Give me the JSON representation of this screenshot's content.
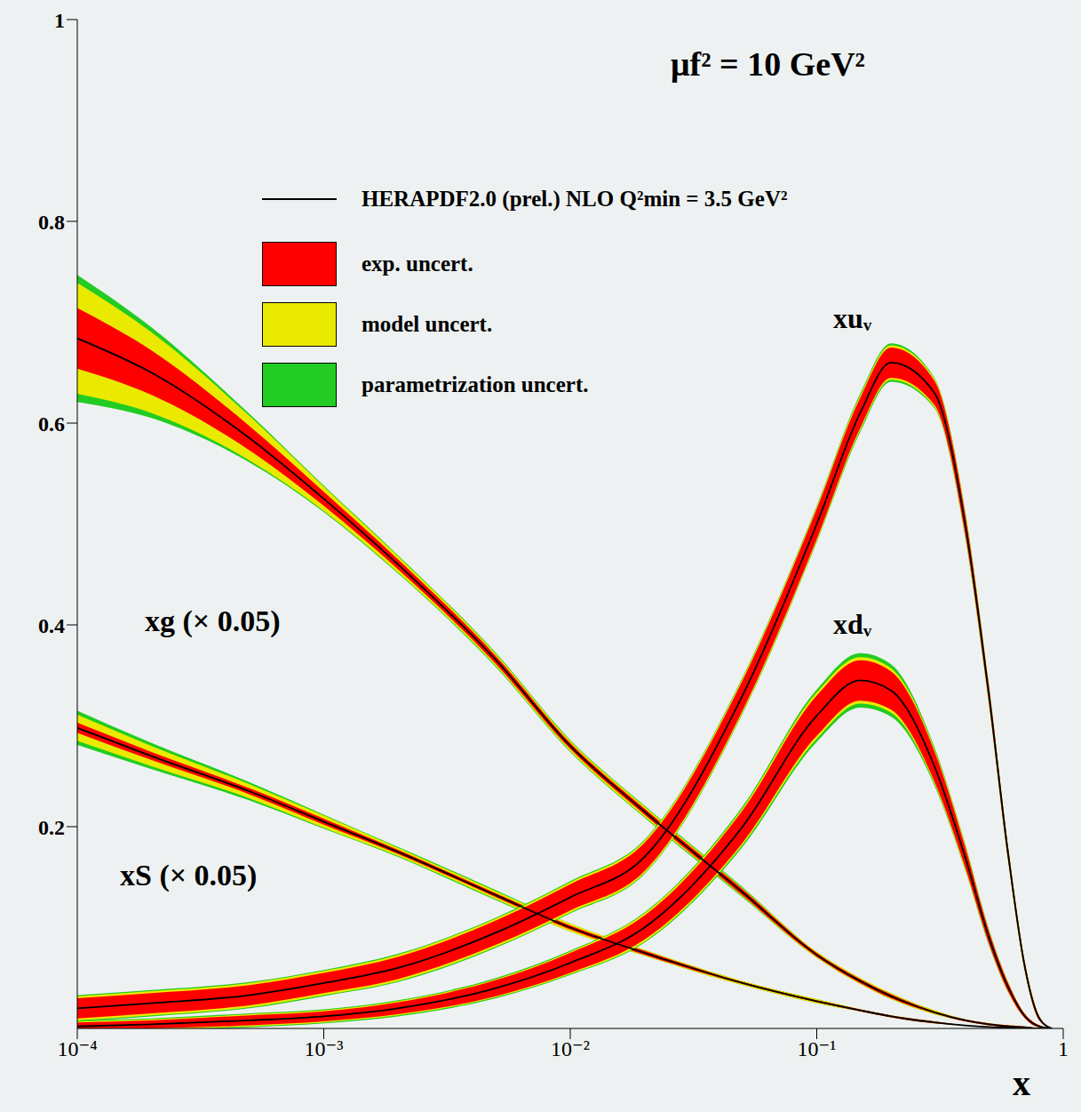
{
  "chart_data": {
    "type": "line",
    "annotation": "μf² = 10 GeV²",
    "x_label": "x",
    "log": "x",
    "grid": false,
    "legend": "top",
    "central": {
      "name": "HERAPDF2.0 (prel.) NLO Q²min = 3.5 GeV²",
      "color": "#000000"
    },
    "bands": [
      {
        "name": "exp. uncert.",
        "color": "#ff0000"
      },
      {
        "name": "model uncert.",
        "color": "#eaea00"
      },
      {
        "name": "parametrization uncert.",
        "color": "#22cc22"
      }
    ],
    "xlim": [
      0.0001,
      1
    ],
    "xticks": [
      {
        "value": 0.0001,
        "label": "10⁻⁴"
      },
      {
        "value": 0.001,
        "label": "10⁻³"
      },
      {
        "value": 0.01,
        "label": "10⁻²"
      },
      {
        "value": 0.1,
        "label": "10⁻¹"
      },
      1
    ],
    "ylim": [
      0,
      1
    ],
    "yticks": [
      0.2,
      0.4,
      0.6,
      0.8,
      1
    ],
    "x": [
      0.0001,
      0.0002,
      0.0005,
      0.001,
      0.002,
      0.005,
      0.01,
      0.02,
      0.05,
      0.1,
      0.15,
      0.2,
      0.3,
      0.4,
      0.5,
      0.6,
      0.7,
      0.8,
      0.9
    ],
    "series": [
      {
        "name": "xg (× 0.05)",
        "color": "#000000",
        "values": [
          0.684,
          0.65,
          0.585,
          0.525,
          0.46,
          0.365,
          0.28,
          0.215,
          0.135,
          0.073,
          0.047,
          0.032,
          0.016,
          0.008,
          0.004,
          0.002,
          0.001,
          0,
          0
        ],
        "exp_unc": [
          0.03,
          0.022,
          0.012,
          0.007,
          0.005,
          0.004,
          0.003,
          0.003,
          0.003,
          0.002,
          0.002,
          0.002,
          0.001,
          0.001,
          0.001,
          0.001,
          0.001,
          0,
          0
        ],
        "model_unc": [
          0.025,
          0.018,
          0.01,
          0.005,
          0.003,
          0.002,
          0.002,
          0.002,
          0.001,
          0.001,
          0.001,
          0.001,
          0.001,
          0,
          0,
          0,
          0,
          0,
          0
        ],
        "param_unc": [
          0.008,
          0.005,
          0.002,
          0.001,
          0.001,
          0.001,
          0.001,
          0.001,
          0.001,
          0,
          0,
          0,
          0,
          0,
          0,
          0,
          0,
          0,
          0
        ]
      },
      {
        "name": "xS (× 0.05)",
        "color": "#000000",
        "values": [
          0.298,
          0.27,
          0.235,
          0.205,
          0.175,
          0.132,
          0.1,
          0.075,
          0.045,
          0.027,
          0.018,
          0.012,
          0.006,
          0.003,
          0.0015,
          0.0008,
          0.0003,
          0,
          0
        ],
        "exp_unc": [
          0.005,
          0.004,
          0.003,
          0.003,
          0.002,
          0.002,
          0.002,
          0.002,
          0.001,
          0.001,
          0.001,
          0.001,
          0.001,
          0,
          0,
          0,
          0,
          0,
          0
        ],
        "model_unc": [
          0.008,
          0.006,
          0.004,
          0.003,
          0.002,
          0.002,
          0.002,
          0.001,
          0.001,
          0.001,
          0,
          0,
          0,
          0,
          0,
          0,
          0,
          0,
          0
        ],
        "param_unc": [
          0.004,
          0.003,
          0.002,
          0.001,
          0.001,
          0.001,
          0,
          0,
          0,
          0,
          0,
          0,
          0,
          0,
          0,
          0,
          0,
          0,
          0
        ]
      },
      {
        "name": "xuᵥ",
        "color": "#000000",
        "values": [
          0.02,
          0.025,
          0.033,
          0.045,
          0.06,
          0.095,
          0.13,
          0.17,
          0.33,
          0.5,
          0.61,
          0.66,
          0.63,
          0.5,
          0.33,
          0.17,
          0.06,
          0.01,
          0
        ],
        "exp_unc": [
          0.01,
          0.01,
          0.01,
          0.01,
          0.011,
          0.012,
          0.013,
          0.014,
          0.015,
          0.015,
          0.015,
          0.015,
          0.012,
          0.01,
          0.008,
          0.006,
          0.004,
          0.002,
          0
        ],
        "model_unc": [
          0.002,
          0.002,
          0.002,
          0.002,
          0.002,
          0.002,
          0.002,
          0.002,
          0.002,
          0.002,
          0.002,
          0.002,
          0.002,
          0.002,
          0.001,
          0.001,
          0.001,
          0,
          0
        ],
        "param_unc": [
          0.001,
          0.001,
          0.001,
          0.001,
          0.001,
          0.001,
          0.001,
          0.001,
          0.001,
          0.001,
          0.002,
          0.002,
          0.001,
          0.001,
          0.001,
          0,
          0,
          0,
          0
        ]
      },
      {
        "name": "xdᵥ",
        "color": "#000000",
        "values": [
          0.002,
          0.004,
          0.008,
          0.012,
          0.02,
          0.04,
          0.065,
          0.1,
          0.2,
          0.31,
          0.345,
          0.335,
          0.26,
          0.17,
          0.09,
          0.04,
          0.012,
          0.002,
          0
        ],
        "exp_unc": [
          0.004,
          0.004,
          0.005,
          0.005,
          0.006,
          0.008,
          0.01,
          0.012,
          0.016,
          0.02,
          0.02,
          0.019,
          0.015,
          0.01,
          0.006,
          0.004,
          0.002,
          0.001,
          0
        ],
        "model_unc": [
          0.001,
          0.001,
          0.001,
          0.001,
          0.001,
          0.001,
          0.001,
          0.002,
          0.002,
          0.003,
          0.003,
          0.003,
          0.002,
          0.002,
          0.001,
          0.001,
          0,
          0,
          0
        ],
        "param_unc": [
          0.001,
          0.001,
          0.001,
          0.001,
          0.001,
          0.001,
          0.001,
          0.001,
          0.002,
          0.003,
          0.004,
          0.004,
          0.002,
          0.001,
          0.001,
          0,
          0,
          0,
          0
        ]
      }
    ]
  }
}
